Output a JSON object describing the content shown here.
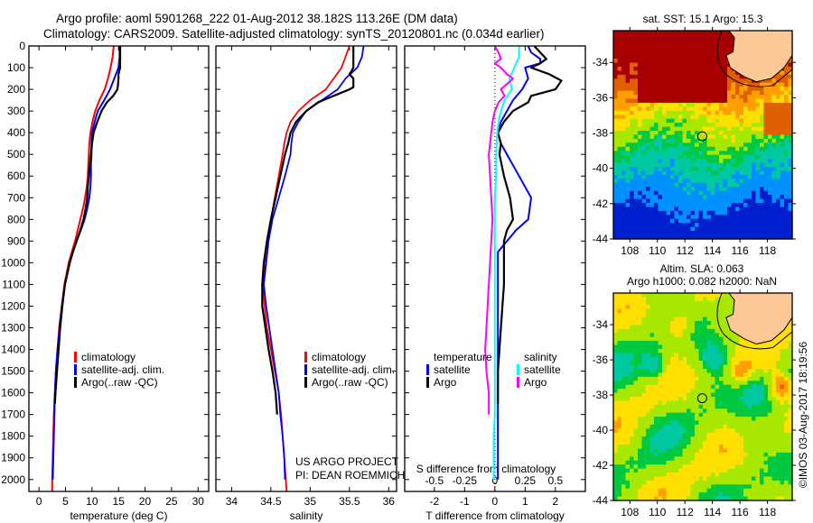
{
  "header": {
    "line1": "Argo profile: aoml 5901268_222 01-Aug-2012 38.182S 113.26E (DM data)",
    "line2": "Climatology: CARS2009. Satellite-adjusted climatology: synTS_20120801.nc (0.034d earlier)"
  },
  "colors": {
    "climatology": "#ff0000",
    "satellite": "#0000ff",
    "argo": "#000000",
    "sal_satellite": "#00ffff",
    "sal_argo": "#ff00ff",
    "land": "#fcc896"
  },
  "credits": {
    "project": "US ARGO PROJECT",
    "pi": "PI: DEAN ROEMMICH",
    "copyright": "©IMOS 03-Aug-2017 18:19:56"
  },
  "chart_data": [
    {
      "id": "temperature",
      "type": "line",
      "xlabel": "temperature (deg C)",
      "ylabel": "",
      "xlim": [
        -1.9,
        32
      ],
      "ylim": [
        2055,
        0
      ],
      "xticks": [
        0,
        5,
        10,
        15,
        20,
        25,
        30
      ],
      "yticks": [
        0,
        100,
        200,
        300,
        400,
        500,
        600,
        700,
        800,
        900,
        1000,
        1100,
        1200,
        1300,
        1400,
        1500,
        1600,
        1700,
        1800,
        1900,
        2000
      ],
      "legend": [
        "climatology",
        "satellite-adj. clim.",
        "Argo(..raw -QC)"
      ],
      "legend_position": "center",
      "series": [
        {
          "name": "climatology",
          "color": "#ff0000",
          "depth": [
            0,
            50,
            100,
            150,
            200,
            250,
            300,
            350,
            400,
            450,
            500,
            550,
            600,
            650,
            700,
            750,
            800,
            850,
            900,
            950,
            1000,
            1100,
            1200,
            1300,
            1400,
            1500,
            1600,
            1700,
            1800,
            1900,
            2000,
            2055
          ],
          "values": [
            14.1,
            13.9,
            13.5,
            13.0,
            12.4,
            11.4,
            10.6,
            10.1,
            9.7,
            9.5,
            9.4,
            9.3,
            9.2,
            9.0,
            8.7,
            8.3,
            7.8,
            7.3,
            6.8,
            6.2,
            5.6,
            4.8,
            4.3,
            3.8,
            3.5,
            3.2,
            3.0,
            2.8,
            2.7,
            2.6,
            2.5,
            2.5
          ]
        },
        {
          "name": "satellite-adj. clim.",
          "color": "#0000ff",
          "depth": [
            0,
            50,
            100,
            150,
            200,
            250,
            300,
            350,
            400,
            450,
            500,
            550,
            600,
            650,
            700,
            750,
            800,
            850,
            900,
            950,
            1000,
            1100,
            1200,
            1300,
            1400,
            1500,
            1600,
            1700,
            1800,
            1900,
            2000
          ],
          "values": [
            15.2,
            15.2,
            15.0,
            14.2,
            13.4,
            12.3,
            11.1,
            10.5,
            10.0,
            9.9,
            9.9,
            9.8,
            9.8,
            9.7,
            9.5,
            9.1,
            8.6,
            7.9,
            7.1,
            6.4,
            5.8,
            4.9,
            4.3,
            3.9,
            3.5,
            3.2,
            3.0,
            2.9,
            2.8,
            2.7,
            2.6
          ]
        },
        {
          "name": "Argo(..raw -QC)",
          "color": "#000000",
          "depth": [
            0,
            50,
            100,
            130,
            150,
            180,
            200,
            230,
            260,
            300,
            350,
            400,
            450,
            500,
            550,
            600,
            650,
            700,
            750,
            800,
            850,
            900,
            950,
            1000,
            1100,
            1200,
            1300,
            1400,
            1500,
            1600,
            1650
          ],
          "values": [
            15.3,
            15.3,
            15.3,
            15.0,
            15.0,
            14.9,
            14.8,
            14.0,
            12.8,
            11.8,
            11.0,
            10.3,
            10.0,
            9.8,
            9.6,
            9.4,
            9.2,
            9.1,
            8.8,
            8.4,
            7.8,
            7.1,
            6.4,
            5.8,
            4.9,
            4.4,
            4.0,
            3.7,
            3.4,
            3.1,
            3.0
          ]
        }
      ]
    },
    {
      "id": "salinity",
      "type": "line",
      "xlabel": "salinity",
      "xlim": [
        33.8,
        36.1
      ],
      "ylim": [
        2055,
        0
      ],
      "xticks": [
        34,
        34.5,
        35,
        35.5,
        36
      ],
      "legend": [
        "climatology",
        "satellite-adj. clim.",
        "Argo(..raw -QC)"
      ],
      "legend_position": "center-right",
      "series": [
        {
          "name": "climatology",
          "color": "#ff0000",
          "depth": [
            0,
            50,
            100,
            150,
            200,
            250,
            300,
            350,
            400,
            450,
            500,
            600,
            700,
            800,
            900,
            1000,
            1100,
            1200,
            1300,
            1400,
            1500,
            1600,
            1700,
            1800,
            1900,
            2000,
            2055
          ],
          "values": [
            35.5,
            35.45,
            35.4,
            35.3,
            35.2,
            35.0,
            34.85,
            34.75,
            34.7,
            34.67,
            34.65,
            34.6,
            34.55,
            34.5,
            34.45,
            34.42,
            34.4,
            34.42,
            34.45,
            34.5,
            34.55,
            34.6,
            34.63,
            34.65,
            34.67,
            34.69,
            34.7
          ]
        },
        {
          "name": "satellite-adj. clim.",
          "color": "#0000ff",
          "depth": [
            0,
            50,
            100,
            150,
            200,
            250,
            300,
            350,
            400,
            450,
            500,
            600,
            700,
            800,
            900,
            1000,
            1100,
            1200,
            1300,
            1400,
            1500,
            1600,
            1700,
            1800,
            1900,
            2000
          ],
          "values": [
            35.68,
            35.66,
            35.6,
            35.45,
            35.35,
            35.15,
            34.95,
            34.85,
            34.78,
            34.76,
            34.75,
            34.68,
            34.6,
            34.52,
            34.47,
            34.44,
            34.41,
            34.44,
            34.48,
            34.52,
            34.56,
            34.6,
            34.62,
            34.65,
            34.67,
            34.68
          ]
        },
        {
          "name": "Argo(..raw -QC)",
          "color": "#000000",
          "depth": [
            0,
            50,
            100,
            120,
            130,
            150,
            190,
            200,
            230,
            260,
            300,
            350,
            400,
            450,
            500,
            600,
            700,
            800,
            900,
            1000,
            1100,
            1200,
            1300,
            1400,
            1500,
            1600,
            1700
          ],
          "values": [
            35.55,
            35.55,
            35.55,
            35.52,
            35.5,
            35.55,
            35.55,
            35.5,
            35.3,
            35.1,
            34.95,
            34.82,
            34.75,
            34.72,
            34.68,
            34.62,
            34.56,
            34.5,
            34.45,
            34.41,
            34.39,
            34.39,
            34.43,
            34.47,
            34.52,
            34.56,
            34.58
          ]
        }
      ]
    },
    {
      "id": "difference",
      "type": "line",
      "xlabel": "T difference from climatology",
      "xlabel_secondary": "S difference from climatology",
      "xlim": [
        -2.98,
        2.99
      ],
      "xlim_secondary": [
        -0.745,
        0.7475
      ],
      "ylim": [
        2055,
        0
      ],
      "xticks": [
        -2,
        -1,
        0,
        1,
        2
      ],
      "xticks_secondary": [
        "-0.5",
        "-0.25",
        "0",
        "0.25",
        "0.5"
      ],
      "xticks_secondary_values": [
        -0.5,
        -0.25,
        0,
        0.25,
        0.5
      ],
      "legend_groups": [
        {
          "title": "temperature",
          "items": [
            {
              "label": "satellite",
              "color": "#0000ff"
            },
            {
              "label": "Argo",
              "color": "#000000"
            }
          ]
        },
        {
          "title": "salinity",
          "items": [
            {
              "label": "satellite",
              "color": "#00ffff"
            },
            {
              "label": "Argo",
              "color": "#ff00ff"
            }
          ]
        }
      ],
      "series": [
        {
          "name": "temperature satellite",
          "color": "#0000ff",
          "axis": "T",
          "depth": [
            0,
            30,
            60,
            80,
            100,
            150,
            200,
            250,
            300,
            350,
            400,
            450,
            500,
            600,
            700,
            800,
            850,
            900,
            950,
            1000,
            1100,
            1200,
            1300,
            1400,
            1500,
            1600,
            1700,
            1800,
            1900,
            2000
          ],
          "values": [
            1.1,
            1.2,
            1.5,
            1.5,
            1.0,
            1.1,
            0.9,
            0.6,
            0.4,
            0.2,
            0.1,
            0.2,
            0.4,
            0.8,
            1.2,
            1.1,
            0.7,
            0.4,
            0.1,
            0.1,
            0.1,
            0.1,
            0.1,
            0.1,
            0.1,
            0.1,
            0.1,
            0.1,
            0.1,
            0.1
          ]
        },
        {
          "name": "temperature Argo",
          "color": "#000000",
          "axis": "T",
          "depth": [
            0,
            30,
            60,
            80,
            100,
            130,
            160,
            200,
            230,
            260,
            300,
            350,
            400,
            450,
            500,
            600,
            700,
            800,
            850,
            900,
            950,
            1000,
            1100,
            1200,
            1300,
            1400,
            1500,
            1600,
            1650
          ],
          "values": [
            1.3,
            1.5,
            1.7,
            1.5,
            1.2,
            1.8,
            2.2,
            2.0,
            1.2,
            1.1,
            0.6,
            0.3,
            0.1,
            0.2,
            0.15,
            0.3,
            0.5,
            0.6,
            0.4,
            0.3,
            0.3,
            0.3,
            0.3,
            0.25,
            0.2,
            0.15,
            0.1,
            0.1,
            0.1
          ]
        },
        {
          "name": "salinity satellite",
          "color": "#00ffff",
          "axis": "S",
          "depth": [
            0,
            50,
            100,
            150,
            200,
            250,
            300,
            350,
            400,
            450,
            500,
            600,
            700,
            800,
            900,
            1000,
            1100,
            1200,
            1300,
            1400,
            1500,
            1600,
            1700,
            1800,
            1900,
            2000
          ],
          "values": [
            0.2,
            0.2,
            0.16,
            0.12,
            0.14,
            0.08,
            0.05,
            0.03,
            0.02,
            0.015,
            0.01,
            0.01,
            0.0,
            0.0,
            0.0,
            0.0,
            0.0,
            0.0,
            0.0,
            0.0,
            0.0,
            0.0,
            0.0,
            -0.01,
            -0.01,
            -0.01
          ]
        },
        {
          "name": "salinity Argo",
          "color": "#ff00ff",
          "axis": "S",
          "depth": [
            0,
            30,
            60,
            80,
            100,
            130,
            150,
            200,
            230,
            260,
            300,
            350,
            400,
            450,
            500,
            600,
            700,
            800,
            900,
            1000,
            1100,
            1200,
            1300,
            1400,
            1500,
            1600,
            1700
          ],
          "values": [
            0.0,
            0.03,
            0.05,
            0.0,
            0.05,
            0.1,
            0.15,
            0.05,
            0.08,
            0.03,
            0.0,
            -0.02,
            -0.03,
            -0.04,
            -0.05,
            -0.04,
            -0.03,
            -0.02,
            -0.03,
            -0.04,
            -0.05,
            -0.06,
            -0.07,
            -0.08,
            -0.07,
            -0.05,
            -0.05
          ]
        }
      ]
    },
    {
      "id": "sst_map",
      "type": "heatmap",
      "title": "sat. SST: 15.1 Argo: 15.3",
      "xlim": [
        106.8,
        119.8
      ],
      "ylim": [
        -44,
        -32.2
      ],
      "xticks": [
        108,
        110,
        112,
        114,
        116,
        118
      ],
      "yticks": [
        -34,
        -36,
        -38,
        -40,
        -42,
        -44
      ],
      "marker": {
        "lon": 113.26,
        "lat": -38.182
      }
    },
    {
      "id": "sla_map",
      "type": "heatmap",
      "title_line1": "Altim. SLA: 0.063",
      "title_line2": "Argo h1000: 0.082 h2000: NaN",
      "xlim": [
        106.8,
        119.8
      ],
      "ylim": [
        -44,
        -32.2
      ],
      "xticks": [
        108,
        110,
        112,
        114,
        116,
        118
      ],
      "yticks": [
        -34,
        -36,
        -38,
        -40,
        -42,
        -44
      ],
      "marker": {
        "lon": 113.26,
        "lat": -38.182
      }
    }
  ]
}
